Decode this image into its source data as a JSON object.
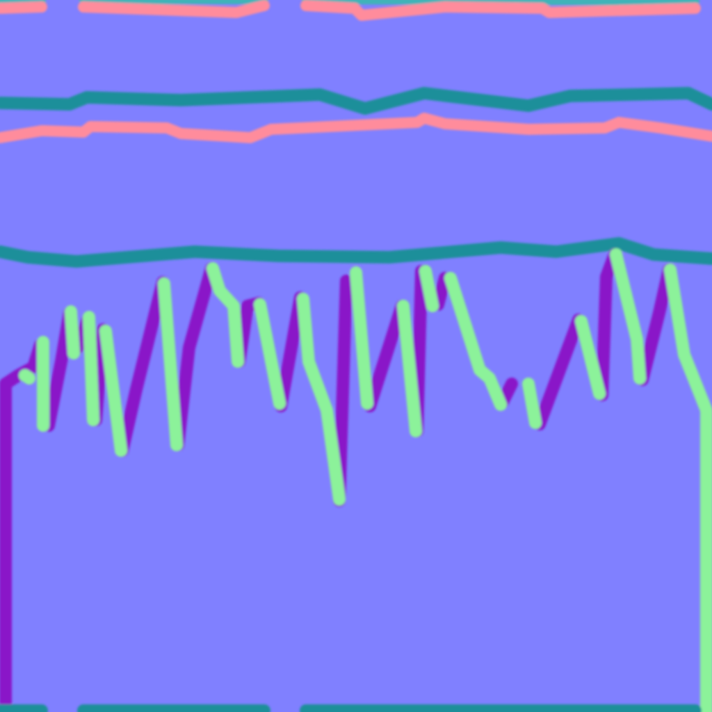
{
  "image": {
    "kind": "normal-map texture",
    "colors": {
      "background": "#8080ff",
      "edge_up": "#1e8f9a",
      "edge_down": "#ff8c9c",
      "edge_left": "#8a12c8",
      "edge_right": "#8cf29a",
      "edge_up_light": "#3fb3b8",
      "edge_down_light": "#ffaab5"
    }
  }
}
